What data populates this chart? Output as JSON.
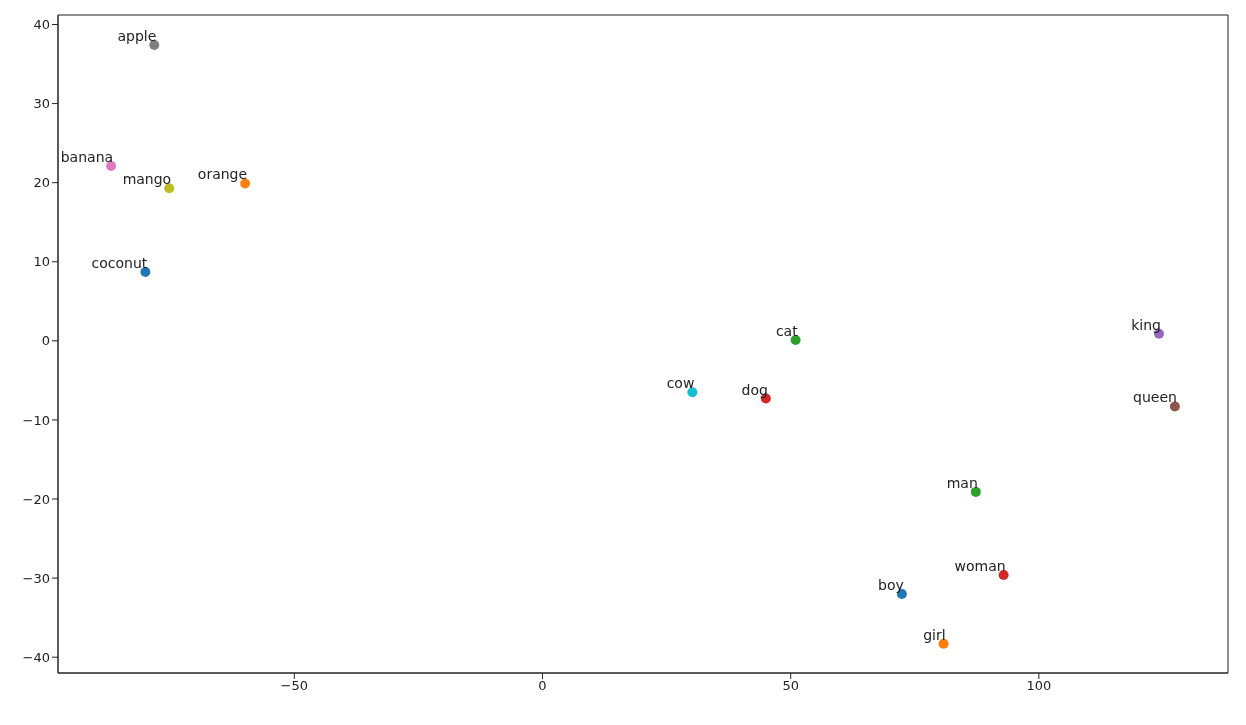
{
  "chart_data": {
    "type": "scatter",
    "marker": "circle",
    "grid": false,
    "legend": false,
    "xlim": [
      -97.6,
      138.1
    ],
    "ylim": [
      -42.0,
      41.2
    ],
    "xticks": [
      -50,
      0,
      50,
      100
    ],
    "yticks": [
      -40,
      -30,
      -20,
      -10,
      0,
      10,
      20,
      30,
      40
    ],
    "series": [
      {
        "name": "coconut",
        "color": "#1f77b4",
        "x": [
          -80.0
        ],
        "values": [
          8.7
        ]
      },
      {
        "name": "orange",
        "color": "#ff7f0e",
        "x": [
          -59.9
        ],
        "values": [
          19.9
        ]
      },
      {
        "name": "cat",
        "color": "#2ca02c",
        "x": [
          51.0
        ],
        "values": [
          0.1
        ]
      },
      {
        "name": "dog",
        "color": "#d62728",
        "x": [
          45.0
        ],
        "values": [
          -7.3
        ]
      },
      {
        "name": "king",
        "color": "#9467bd",
        "x": [
          124.2
        ],
        "values": [
          0.9
        ]
      },
      {
        "name": "queen",
        "color": "#8c564b",
        "x": [
          127.4
        ],
        "values": [
          -8.3
        ]
      },
      {
        "name": "banana",
        "color": "#e377c2",
        "x": [
          -86.9
        ],
        "values": [
          22.1
        ]
      },
      {
        "name": "apple",
        "color": "#7f7f7f",
        "x": [
          -78.2
        ],
        "values": [
          37.4
        ]
      },
      {
        "name": "mango",
        "color": "#bcbd22",
        "x": [
          -75.2
        ],
        "values": [
          19.3
        ]
      },
      {
        "name": "cow",
        "color": "#17becf",
        "x": [
          30.2
        ],
        "values": [
          -6.5
        ]
      },
      {
        "name": "boy",
        "color": "#1f77b4",
        "x": [
          72.4
        ],
        "values": [
          -32.0
        ]
      },
      {
        "name": "girl",
        "color": "#ff7f0e",
        "x": [
          80.8
        ],
        "values": [
          -38.3
        ]
      },
      {
        "name": "man",
        "color": "#2ca02c",
        "x": [
          87.3
        ],
        "values": [
          -19.1
        ]
      },
      {
        "name": "woman",
        "color": "#d62728",
        "x": [
          92.9
        ],
        "values": [
          -29.6
        ]
      }
    ]
  }
}
